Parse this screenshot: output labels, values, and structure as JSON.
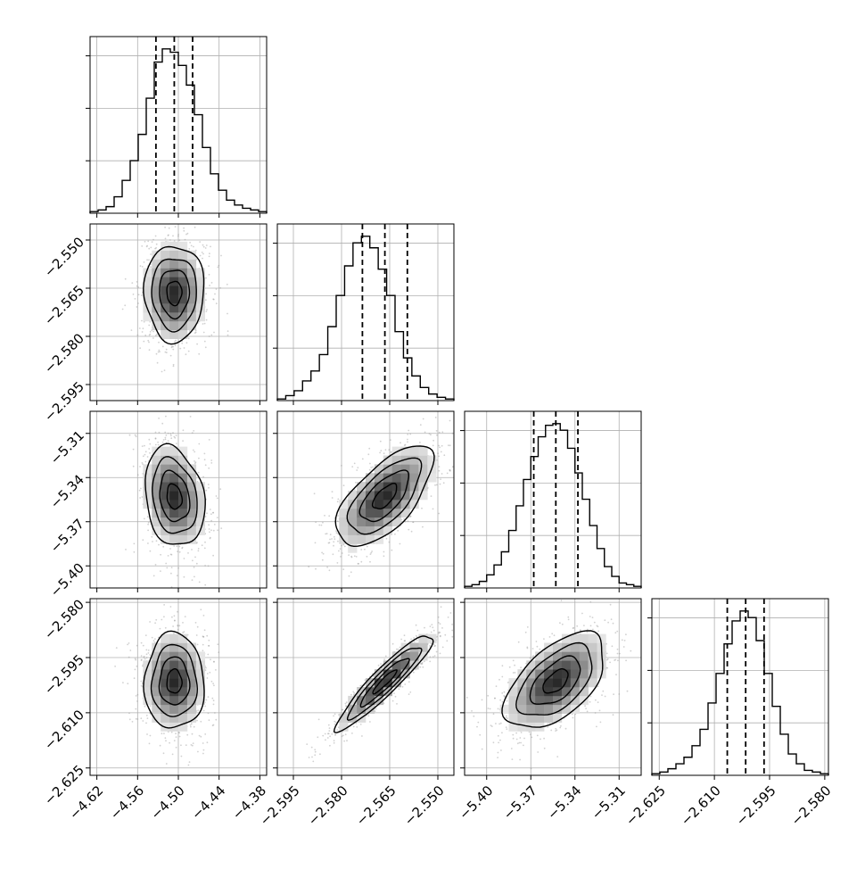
{
  "chart_data": {
    "type": "corner",
    "title": "",
    "n_params": 4,
    "params": [
      {
        "range": [
          -4.63,
          -4.37
        ],
        "ticks": [
          -4.62,
          -4.56,
          -4.5,
          -4.44,
          -4.38
        ],
        "tick_labels": [
          "−4.62",
          "−4.56",
          "−4.50",
          "−4.44",
          "−4.38"
        ],
        "quantiles": [
          -4.533,
          -4.506,
          -4.479
        ],
        "hist": [
          1,
          2,
          4,
          10,
          20,
          32,
          48,
          70,
          92,
          100,
          98,
          90,
          78,
          60,
          40,
          24,
          14,
          8,
          5,
          3,
          2,
          1
        ]
      },
      {
        "range": [
          -2.6,
          -2.545
        ],
        "ticks": [
          -2.595,
          -2.58,
          -2.565,
          -2.55
        ],
        "tick_labels": [
          "−2.595",
          "−2.580",
          "−2.565",
          "−2.550"
        ],
        "quantiles": [
          -2.5735,
          -2.5665,
          -2.5595
        ],
        "hist": [
          1,
          3,
          6,
          12,
          18,
          28,
          45,
          64,
          82,
          96,
          100,
          93,
          80,
          64,
          42,
          26,
          15,
          8,
          4,
          2,
          1
        ]
      },
      {
        "range": [
          -5.415,
          -5.295
        ],
        "ticks": [
          -5.4,
          -5.37,
          -5.34,
          -5.31
        ],
        "tick_labels": [
          "−5.40",
          "−5.37",
          "−5.34",
          "−5.31"
        ],
        "quantiles": [
          -5.368,
          -5.353,
          -5.338
        ],
        "hist": [
          1,
          2,
          4,
          8,
          14,
          22,
          35,
          50,
          66,
          80,
          92,
          99,
          100,
          96,
          85,
          70,
          54,
          38,
          24,
          13,
          7,
          3,
          2,
          1
        ]
      },
      {
        "range": [
          -2.627,
          -2.579
        ],
        "ticks": [
          -2.625,
          -2.61,
          -2.595,
          -2.58
        ],
        "tick_labels": [
          "−2.625",
          "−2.610",
          "−2.595",
          "−2.580"
        ],
        "quantiles": [
          -2.6065,
          -2.6015,
          -2.5965
        ],
        "hist": [
          1,
          2,
          4,
          7,
          11,
          18,
          28,
          44,
          62,
          80,
          94,
          100,
          96,
          82,
          62,
          42,
          25,
          13,
          7,
          3,
          2,
          1
        ]
      }
    ],
    "pairs": [
      {
        "row": 1,
        "col": 0,
        "center": [
          -4.506,
          -2.5665
        ],
        "sigma": [
          0.022,
          0.0075
        ],
        "rho": 0.0
      },
      {
        "row": 2,
        "col": 0,
        "center": [
          -4.506,
          -5.353
        ],
        "sigma": [
          0.022,
          0.017
        ],
        "rho": -0.2
      },
      {
        "row": 2,
        "col": 1,
        "center": [
          -2.5665,
          -5.353
        ],
        "sigma": [
          0.0075,
          0.017
        ],
        "rho": 0.65
      },
      {
        "row": 3,
        "col": 0,
        "center": [
          -4.506,
          -2.6015
        ],
        "sigma": [
          0.022,
          0.0065
        ],
        "rho": 0.0
      },
      {
        "row": 3,
        "col": 1,
        "center": [
          -2.5665,
          -2.6015
        ],
        "sigma": [
          0.0075,
          0.0065
        ],
        "rho": 0.93
      },
      {
        "row": 3,
        "col": 2,
        "center": [
          -5.353,
          -2.6015
        ],
        "sigma": [
          0.017,
          0.0065
        ],
        "rho": 0.55
      }
    ],
    "grid": true
  },
  "style": {
    "line_color": "#000000",
    "point_color": "#9a9a9a",
    "grid_color": "#b0b0b0",
    "background": "#ffffff"
  }
}
